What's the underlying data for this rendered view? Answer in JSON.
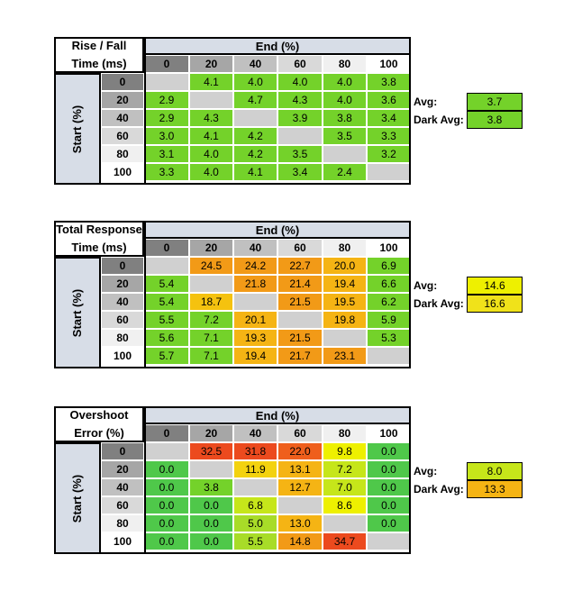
{
  "chart_data": [
    {
      "type": "table",
      "title_lines": [
        "Rise / Fall",
        "Time (ms)"
      ],
      "xlabel": "End (%)",
      "ylabel": "Start (%)",
      "columns": [
        "0",
        "20",
        "40",
        "60",
        "80",
        "100"
      ],
      "rows": [
        "0",
        "20",
        "40",
        "60",
        "80",
        "100"
      ],
      "values": [
        [
          null,
          "4.1",
          "4.0",
          "4.0",
          "4.0",
          "3.8"
        ],
        [
          "2.9",
          null,
          "4.7",
          "4.3",
          "4.0",
          "3.6"
        ],
        [
          "2.9",
          "4.3",
          null,
          "3.9",
          "3.8",
          "3.4"
        ],
        [
          "3.0",
          "4.1",
          "4.2",
          null,
          "3.5",
          "3.3"
        ],
        [
          "3.1",
          "4.0",
          "4.2",
          "3.5",
          null,
          "3.2"
        ],
        [
          "3.3",
          "4.0",
          "4.1",
          "3.4",
          "2.4",
          null
        ]
      ],
      "colors": [
        [
          null,
          "#74d22a",
          "#74d22a",
          "#74d22a",
          "#74d22a",
          "#74d22a"
        ],
        [
          "#74d22a",
          null,
          "#74d22a",
          "#74d22a",
          "#74d22a",
          "#74d22a"
        ],
        [
          "#74d22a",
          "#74d22a",
          null,
          "#74d22a",
          "#74d22a",
          "#74d22a"
        ],
        [
          "#74d22a",
          "#74d22a",
          "#74d22a",
          null,
          "#74d22a",
          "#74d22a"
        ],
        [
          "#74d22a",
          "#74d22a",
          "#74d22a",
          "#74d22a",
          null,
          "#74d22a"
        ],
        [
          "#74d22a",
          "#74d22a",
          "#74d22a",
          "#74d22a",
          "#74d22a",
          null
        ]
      ],
      "summary": [
        {
          "label": "Avg:",
          "value": "3.7",
          "color": "#74d22a"
        },
        {
          "label": "Dark Avg:",
          "value": "3.8",
          "color": "#74d22a"
        }
      ]
    },
    {
      "type": "table",
      "title_lines": [
        "Total Response",
        "Time (ms)"
      ],
      "xlabel": "End (%)",
      "ylabel": "Start (%)",
      "columns": [
        "0",
        "20",
        "40",
        "60",
        "80",
        "100"
      ],
      "rows": [
        "0",
        "20",
        "40",
        "60",
        "80",
        "100"
      ],
      "values": [
        [
          null,
          "24.5",
          "24.2",
          "22.7",
          "20.0",
          "6.9"
        ],
        [
          "5.4",
          null,
          "21.8",
          "21.4",
          "19.4",
          "6.6"
        ],
        [
          "5.4",
          "18.7",
          null,
          "21.5",
          "19.5",
          "6.2"
        ],
        [
          "5.5",
          "7.2",
          "20.1",
          null,
          "19.8",
          "5.9"
        ],
        [
          "5.6",
          "7.1",
          "19.3",
          "21.5",
          null,
          "5.3"
        ],
        [
          "5.7",
          "7.1",
          "19.4",
          "21.7",
          "23.1",
          null
        ]
      ],
      "colors": [
        [
          null,
          "#f29a17",
          "#f29a17",
          "#f29a17",
          "#f5b414",
          "#74d22a"
        ],
        [
          "#74d22a",
          null,
          "#f29a17",
          "#f29a17",
          "#f5b414",
          "#74d22a"
        ],
        [
          "#74d22a",
          "#f5c20f",
          null,
          "#f29a17",
          "#f5b414",
          "#74d22a"
        ],
        [
          "#74d22a",
          "#74d22a",
          "#f5b414",
          null,
          "#f5b414",
          "#74d22a"
        ],
        [
          "#74d22a",
          "#74d22a",
          "#f5b414",
          "#f29a17",
          null,
          "#74d22a"
        ],
        [
          "#74d22a",
          "#74d22a",
          "#f5b414",
          "#f29a17",
          "#f29a17",
          null
        ]
      ],
      "summary": [
        {
          "label": "Avg:",
          "value": "14.6",
          "color": "#eef000"
        },
        {
          "label": "Dark Avg:",
          "value": "16.6",
          "color": "#f0e21a"
        }
      ]
    },
    {
      "type": "table",
      "title_lines": [
        "Overshoot",
        "Error (%)"
      ],
      "xlabel": "End (%)",
      "ylabel": "Start (%)",
      "columns": [
        "0",
        "20",
        "40",
        "60",
        "80",
        "100"
      ],
      "rows": [
        "0",
        "20",
        "40",
        "60",
        "80",
        "100"
      ],
      "values": [
        [
          null,
          "32.5",
          "31.8",
          "22.0",
          "9.8",
          "0.0"
        ],
        [
          "0.0",
          null,
          "11.9",
          "13.1",
          "7.2",
          "0.0"
        ],
        [
          "0.0",
          "3.8",
          null,
          "12.7",
          "7.0",
          "0.0"
        ],
        [
          "0.0",
          "0.0",
          "6.8",
          null,
          "8.6",
          "0.0"
        ],
        [
          "0.0",
          "0.0",
          "5.0",
          "13.0",
          null,
          "0.0"
        ],
        [
          "0.0",
          "0.0",
          "5.5",
          "14.8",
          "34.7",
          null
        ]
      ],
      "colors": [
        [
          null,
          "#ec4a1e",
          "#ec4a1e",
          "#ef5f1c",
          "#eef000",
          "#4fc84a"
        ],
        [
          "#4fc84a",
          null,
          "#f3d20f",
          "#f5b414",
          "#c6e61a",
          "#4fc84a"
        ],
        [
          "#4fc84a",
          "#74d22a",
          null,
          "#f5b414",
          "#c6e61a",
          "#4fc84a"
        ],
        [
          "#4fc84a",
          "#4fc84a",
          "#c6e61a",
          null,
          "#eef000",
          "#4fc84a"
        ],
        [
          "#4fc84a",
          "#4fc84a",
          "#a8dc28",
          "#f5b414",
          null,
          "#4fc84a"
        ],
        [
          "#4fc84a",
          "#4fc84a",
          "#a8dc28",
          "#f29a17",
          "#ec4a1e",
          null
        ]
      ],
      "summary": [
        {
          "label": "Avg:",
          "value": "8.0",
          "color": "#c6e61a"
        },
        {
          "label": "Dark Avg:",
          "value": "13.3",
          "color": "#f5b414"
        }
      ]
    }
  ],
  "style": {
    "colhdr_colors": [
      "#808080",
      "#a6a6a6",
      "#c0c0c0",
      "#d9d9d9",
      "#f0f0f0",
      "#ffffff"
    ],
    "empty_color": "#d0d0d0"
  }
}
